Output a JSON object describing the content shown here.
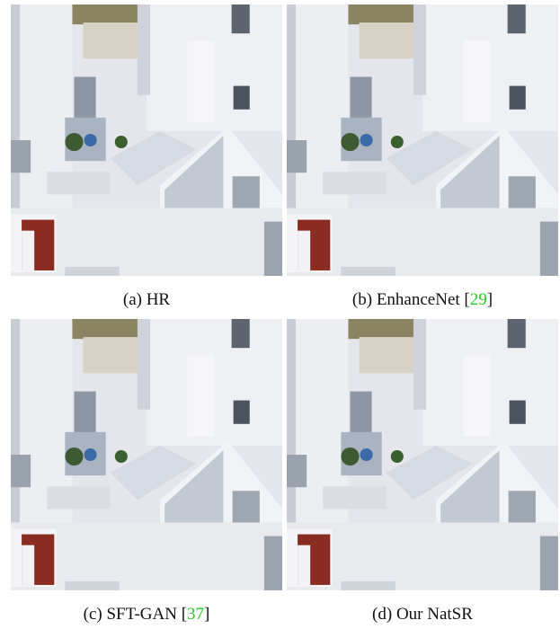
{
  "panels": [
    {
      "label": "(a) HR"
    },
    {
      "label": "(b) EnhanceNet",
      "ref_open": "[",
      "ref": "29",
      "ref_close": "]"
    },
    {
      "label": "(c) SFT-GAN",
      "ref_open": "[",
      "ref": "37",
      "ref_close": "]"
    },
    {
      "label": "(d) Our NatSR"
    }
  ]
}
